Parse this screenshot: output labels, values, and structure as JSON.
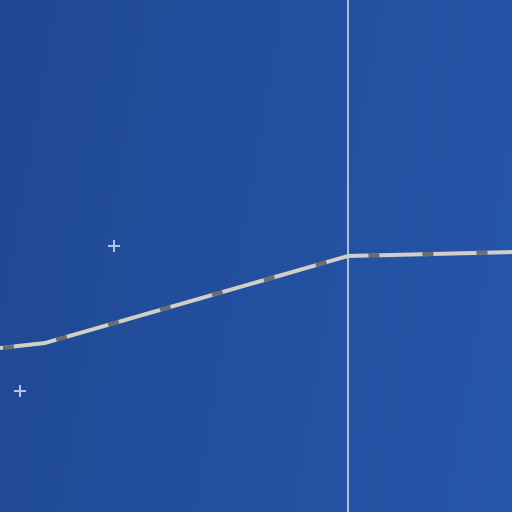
{
  "map": {
    "background_colors": [
      "#1f4892",
      "#2656aa"
    ],
    "gridline_color": "#c8cfe0",
    "route": {
      "casing_color": "#d2cfc6",
      "dash_color": "#6a6e70"
    },
    "marker_color": "#b8c2e4",
    "marker_icon": "crosshair-plus"
  }
}
